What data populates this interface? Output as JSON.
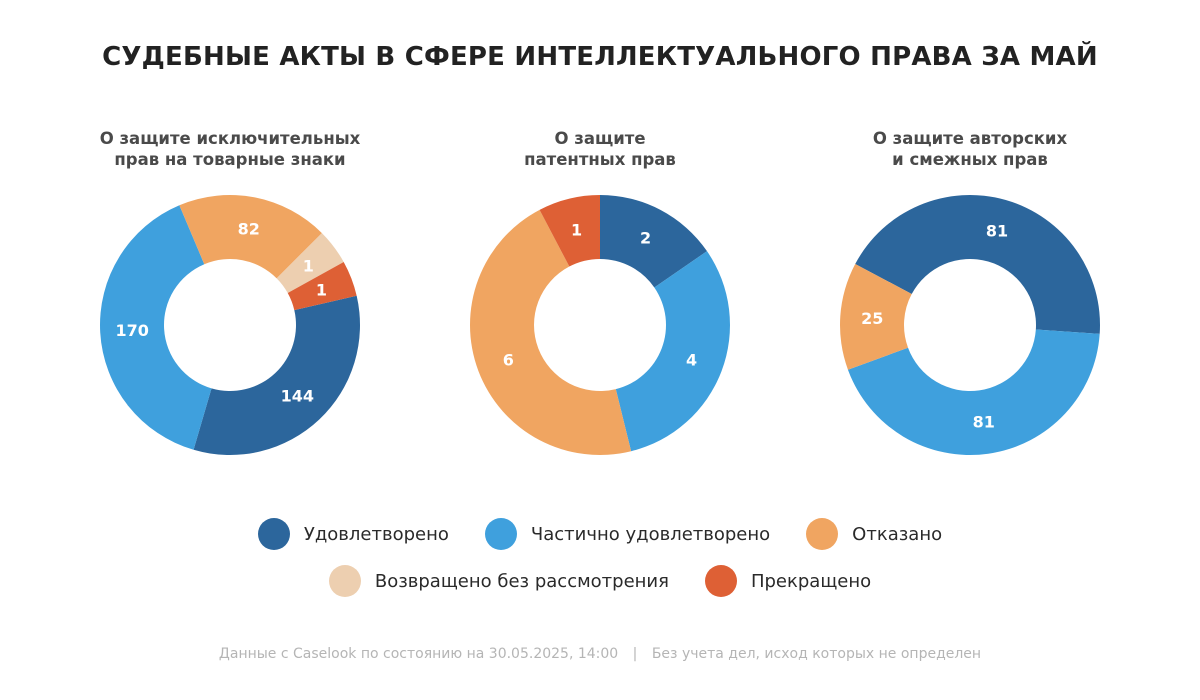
{
  "chart_data": {
    "type": "pie",
    "title": "СУДЕБНЫЕ АКТЫ В СФЕРЕ ИНТЕЛЛЕКТУАЛЬНОГО ПРАВА ЗА МАЙ",
    "legend_position": "bottom",
    "categories": [
      {
        "key": "satisfied",
        "label": "Удовлетворено",
        "color": "#2C669C"
      },
      {
        "key": "partially",
        "label": "Частично удовлетворено",
        "color": "#3FA0DD"
      },
      {
        "key": "refused",
        "label": "Отказано",
        "color": "#F0A561"
      },
      {
        "key": "returned",
        "label": "Возвращено без рассмотрения",
        "color": "#EDCFB0"
      },
      {
        "key": "terminated",
        "label": "Прекращено",
        "color": "#DE6035"
      }
    ],
    "charts": [
      {
        "subtitle": [
          "О защите исключительных",
          "прав на товарные знаки"
        ],
        "start_angle_deg": 77,
        "min_slice_deg": 16,
        "slices": [
          {
            "category": "satisfied",
            "value": 144
          },
          {
            "category": "partially",
            "value": 170
          },
          {
            "category": "refused",
            "value": 82
          },
          {
            "category": "returned",
            "value": 1
          },
          {
            "category": "terminated",
            "value": 1
          }
        ]
      },
      {
        "subtitle": [
          "О защите",
          "патентных прав"
        ],
        "start_angle_deg": 0,
        "min_slice_deg": 0,
        "slices": [
          {
            "category": "satisfied",
            "value": 2
          },
          {
            "category": "partially",
            "value": 4
          },
          {
            "category": "refused",
            "value": 6
          },
          {
            "category": "terminated",
            "value": 1
          }
        ]
      },
      {
        "subtitle": [
          "О защите авторских",
          "и смежных прав"
        ],
        "start_angle_deg": -62,
        "min_slice_deg": 0,
        "slices": [
          {
            "category": "satisfied",
            "value": 81
          },
          {
            "category": "partially",
            "value": 81
          },
          {
            "category": "refused",
            "value": 25
          }
        ]
      }
    ]
  },
  "footer": {
    "source": "Данные с Caselook по состоянию на 30.05.2025, 14:00",
    "separator": "|",
    "note": "Без учета дел, исход которых не определен"
  }
}
